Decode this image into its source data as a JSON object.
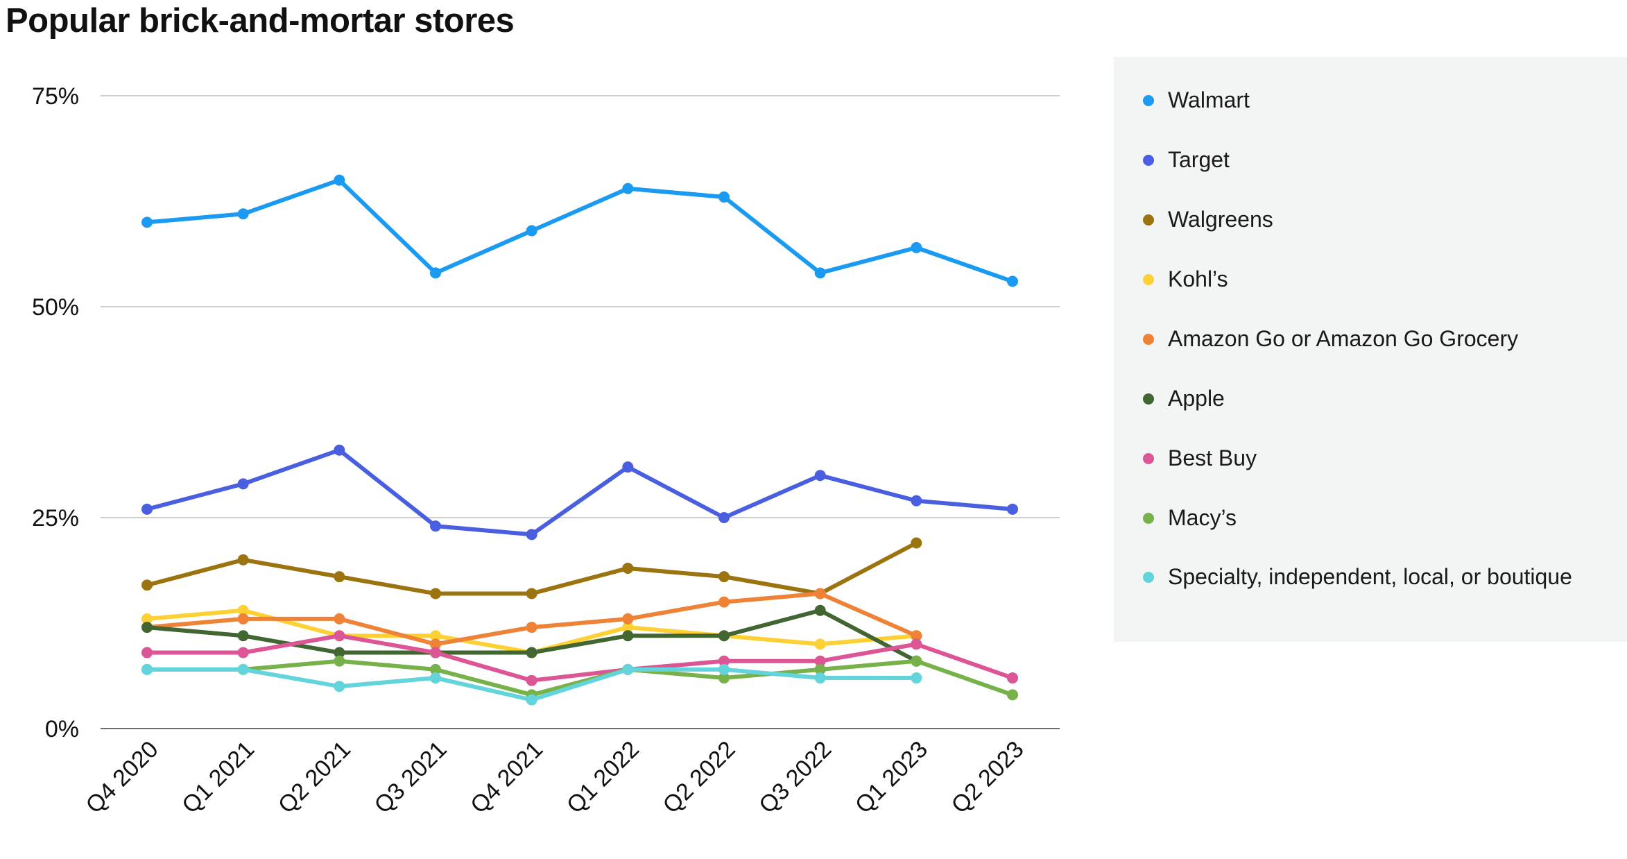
{
  "chart_data": {
    "type": "line",
    "title": "Popular brick-and-mortar stores",
    "categories": [
      "Q4 2020",
      "Q1 2021",
      "Q2 2021",
      "Q3 2021",
      "Q4 2021",
      "Q1 2022",
      "Q2 2022",
      "Q3 2022",
      "Q1 2023",
      "Q2 2023"
    ],
    "y_ticks": [
      "0%",
      "25%",
      "50%",
      "75%"
    ],
    "y_tick_values": [
      0,
      25,
      50,
      75
    ],
    "ylim": [
      0,
      75
    ],
    "grid": true,
    "legend_position": "right",
    "series": [
      {
        "name": "Walmart",
        "color": "#1a9af0",
        "values": [
          60,
          61,
          65,
          54,
          59,
          64,
          63,
          54,
          57,
          53
        ]
      },
      {
        "name": "Target",
        "color": "#4a5fe0",
        "values": [
          26,
          29,
          33,
          24,
          23,
          31,
          25,
          30,
          27,
          26
        ]
      },
      {
        "name": "Walgreens",
        "color": "#9b7410",
        "values": [
          17,
          20,
          18,
          16,
          16,
          19,
          18,
          16,
          22,
          null
        ]
      },
      {
        "name": "Kohl’s",
        "color": "#fdd034",
        "values": [
          13,
          14,
          11,
          11,
          9,
          12,
          11,
          10,
          11,
          null
        ]
      },
      {
        "name": "Amazon Go or Amazon Go Grocery",
        "color": "#ee8237",
        "values": [
          12,
          13,
          13,
          10,
          12,
          13,
          15,
          16,
          11,
          null
        ]
      },
      {
        "name": "Apple",
        "color": "#426631",
        "values": [
          12,
          11,
          9,
          9,
          9,
          11,
          11,
          14,
          8,
          null
        ]
      },
      {
        "name": "Best Buy",
        "color": "#dc5595",
        "values": [
          9,
          9,
          11,
          9,
          5.7,
          7,
          8,
          8,
          10,
          6
        ]
      },
      {
        "name": "Macy’s",
        "color": "#77b14a",
        "values": [
          7,
          7,
          8,
          7,
          4,
          7,
          6,
          7,
          8,
          4
        ]
      },
      {
        "name": "Specialty, independent, local, or boutique",
        "color": "#64d4dc",
        "values": [
          7,
          7,
          5,
          6,
          3.4,
          7,
          7,
          6,
          6,
          null
        ]
      }
    ]
  }
}
